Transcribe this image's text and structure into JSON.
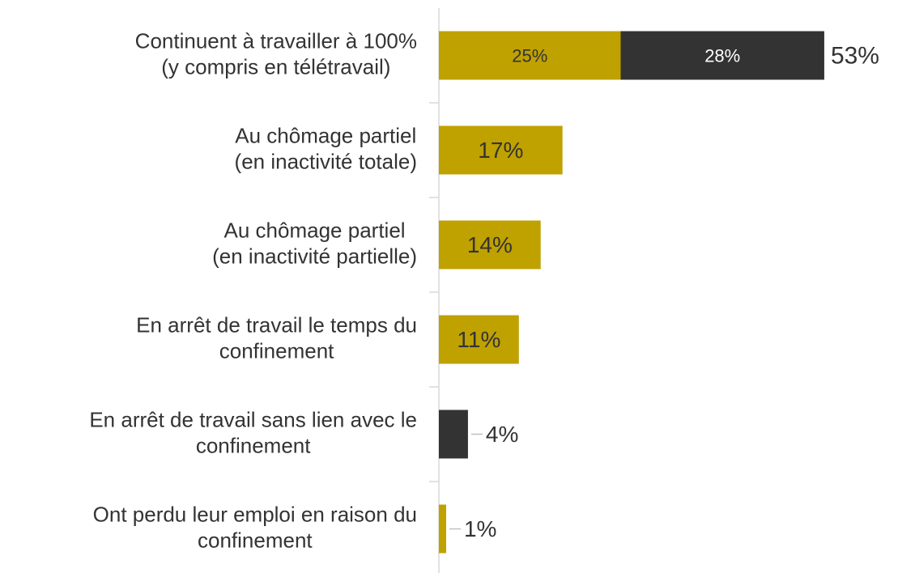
{
  "chart_data": {
    "type": "stacked_barh",
    "categories": [
      "Continuent à travailler à 100%\n(y compris en télétravail)",
      "Au chômage partiel\n(en inactivité totale)",
      "Au chômage partiel\n(en inactivité partielle)",
      "En arrêt de travail le temps du\nconfinement",
      "En arrêt de travail sans lien avec le\nconfinement",
      "Ont perdu leur emploi en raison du\nconfinement"
    ],
    "series": [
      {
        "color": "#bfa100",
        "values": [
          25,
          17,
          14,
          11,
          null,
          1
        ],
        "value_labels": [
          "25%",
          "17%",
          "14%",
          "11%",
          null,
          "1%"
        ]
      },
      {
        "color": "#333333",
        "values": [
          28,
          null,
          null,
          null,
          4,
          null
        ],
        "value_labels": [
          "28%",
          null,
          null,
          null,
          "4%",
          null
        ]
      }
    ],
    "totals": [
      53,
      null,
      null,
      null,
      null,
      null
    ],
    "total_labels": [
      "53%",
      null,
      null,
      null,
      null,
      null
    ]
  }
}
